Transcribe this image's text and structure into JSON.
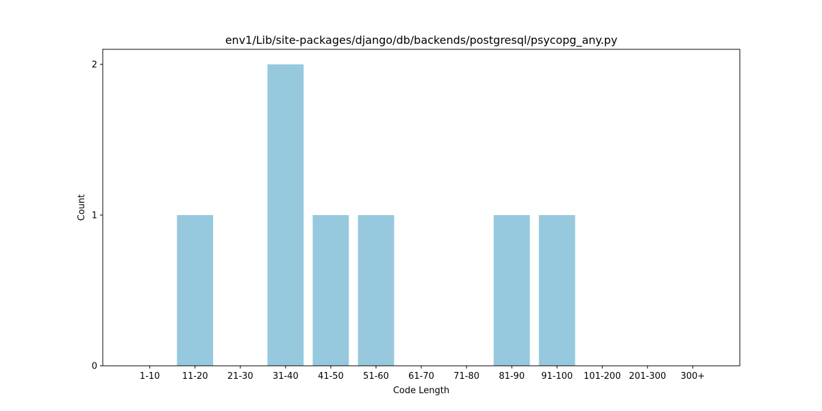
{
  "chart_data": {
    "type": "bar",
    "title": "env1/Lib/site-packages/django/db/backends/postgresql/psycopg_any.py",
    "xlabel": "Code Length",
    "ylabel": "Count",
    "categories": [
      "1-10",
      "11-20",
      "21-30",
      "31-40",
      "41-50",
      "51-60",
      "61-70",
      "71-80",
      "81-90",
      "91-100",
      "101-200",
      "201-300",
      "300+"
    ],
    "values": [
      0,
      1,
      0,
      2,
      1,
      1,
      0,
      0,
      1,
      1,
      0,
      0,
      0
    ],
    "ylim": [
      0,
      2.1
    ],
    "yticks": [
      0,
      1,
      2
    ],
    "ytick_labels": [
      "0",
      "1",
      "2"
    ],
    "grid": false,
    "bar_color": "#96c9dd"
  }
}
